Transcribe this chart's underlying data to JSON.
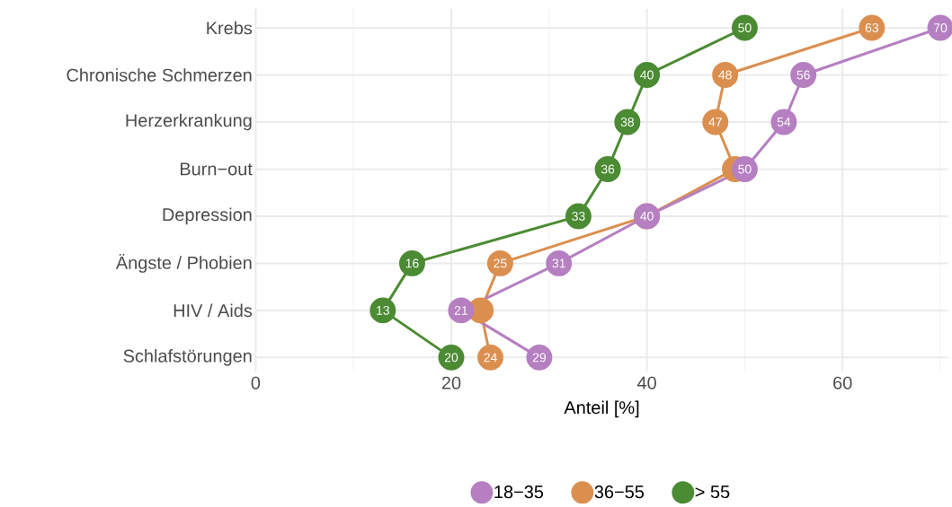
{
  "chart_data": {
    "type": "line",
    "orientation": "horizontal",
    "xlabel": "Anteil [%]",
    "categories": [
      "Krebs",
      "Chronische Schmerzen",
      "Herzerkrankung",
      "Burn−out",
      "Depression",
      "Ängste / Phobien",
      "HIV / Aids",
      "Schlafstörungen"
    ],
    "series": [
      {
        "name": "18−35",
        "color": "#b57fc1",
        "values": [
          70,
          56,
          54,
          50,
          40,
          31,
          21,
          29
        ],
        "value_labels": [
          "70",
          "56",
          "54",
          "50",
          "40",
          "31",
          "21",
          "29"
        ]
      },
      {
        "name": "36−55",
        "color": "#db8f4f",
        "values": [
          63,
          48,
          47,
          49,
          40,
          25,
          23,
          24
        ],
        "value_labels": [
          "63",
          "48",
          "47",
          null,
          null,
          "25",
          null,
          "24"
        ]
      },
      {
        "name": "> 55",
        "color": "#4b8b33",
        "values": [
          50,
          40,
          38,
          36,
          33,
          16,
          13,
          20
        ],
        "value_labels": [
          "50",
          "40",
          "38",
          "36",
          "33",
          "16",
          "13",
          "20"
        ]
      }
    ],
    "xlim": [
      0,
      70.8
    ],
    "xticks": [
      0,
      20,
      40,
      60
    ],
    "grid": true,
    "legend": "bottom",
    "marker": "circle",
    "line_style": "solid"
  }
}
